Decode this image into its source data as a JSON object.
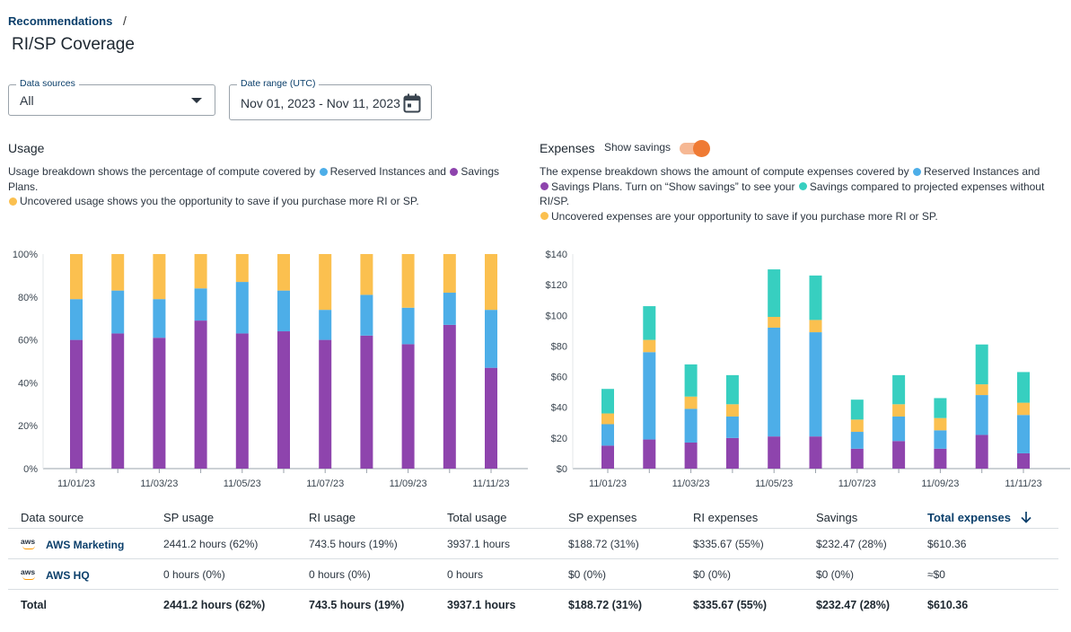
{
  "breadcrumb": {
    "parent": "Recommendations",
    "sep": "/"
  },
  "page_title": "RI/SP Coverage",
  "filters": {
    "data_sources": {
      "label": "Data sources",
      "value": "All"
    },
    "date_range": {
      "label": "Date range (UTC)",
      "value": "Nov 01, 2023 - Nov 11, 2023"
    }
  },
  "usage": {
    "title": "Usage",
    "desc_1": "Usage breakdown shows the percentage of compute covered by",
    "desc_ri": "Reserved Instances and",
    "desc_sp": "Savings Plans.",
    "desc_un": "Uncovered usage shows you the opportunity to save if you purchase more RI or SP."
  },
  "expenses": {
    "title": "Expenses",
    "toggle_label": "Show savings",
    "desc_1": "The expense breakdown shows the amount of compute expenses covered by",
    "desc_ri": "Reserved Instances and",
    "desc_sp": "Savings Plans. Turn on “Show savings” to see your",
    "desc_sv": "Savings compared to projected expenses without RI/SP.",
    "desc_un": "Uncovered expenses are your opportunity to save if you purchase more RI or SP."
  },
  "colors": {
    "sp": "#8e44ad",
    "ri": "#4daee8",
    "uncovered": "#fbc04f",
    "savings": "#37cfc0"
  },
  "chart_data": [
    {
      "type": "bar",
      "stacked": true,
      "title": "Usage",
      "xlabel": "",
      "ylabel": "",
      "ylim": [
        0,
        100
      ],
      "yticks": [
        0,
        20,
        40,
        60,
        80,
        100
      ],
      "ytick_labels": [
        "0%",
        "20%",
        "40%",
        "60%",
        "80%",
        "100%"
      ],
      "categories": [
        "11/01/23",
        "11/02/23",
        "11/03/23",
        "11/04/23",
        "11/05/23",
        "11/06/23",
        "11/07/23",
        "11/08/23",
        "11/09/23",
        "11/10/23",
        "11/11/23"
      ],
      "xtick_labels": [
        "11/01/23",
        "",
        "11/03/23",
        "",
        "11/05/23",
        "",
        "11/07/23",
        "",
        "11/09/23",
        "",
        "11/11/23"
      ],
      "series": [
        {
          "name": "Savings Plans",
          "values": [
            60,
            63,
            61,
            69,
            63,
            64,
            60,
            62,
            58,
            67,
            47
          ]
        },
        {
          "name": "Reserved Instances",
          "values": [
            19,
            20,
            18,
            15,
            24,
            19,
            14,
            19,
            17,
            15,
            27
          ]
        },
        {
          "name": "Uncovered",
          "values": [
            21,
            17,
            21,
            16,
            13,
            17,
            26,
            19,
            25,
            18,
            26
          ]
        }
      ]
    },
    {
      "type": "bar",
      "stacked": true,
      "title": "Expenses",
      "xlabel": "",
      "ylabel": "",
      "ylim": [
        0,
        140
      ],
      "yticks": [
        0,
        20,
        40,
        60,
        80,
        100,
        120,
        140
      ],
      "ytick_labels": [
        "$0",
        "$20",
        "$40",
        "$60",
        "$80",
        "$100",
        "$120",
        "$140"
      ],
      "categories": [
        "11/01/23",
        "11/02/23",
        "11/03/23",
        "11/04/23",
        "11/05/23",
        "11/06/23",
        "11/07/23",
        "11/08/23",
        "11/09/23",
        "11/10/23",
        "11/11/23"
      ],
      "xtick_labels": [
        "11/01/23",
        "",
        "11/03/23",
        "",
        "11/05/23",
        "",
        "11/07/23",
        "",
        "11/09/23",
        "",
        "11/11/23"
      ],
      "series": [
        {
          "name": "Savings Plans",
          "values": [
            15,
            19,
            17,
            20,
            21,
            21,
            13,
            18,
            13,
            22,
            10
          ]
        },
        {
          "name": "Reserved Instances",
          "values": [
            14,
            57,
            22,
            14,
            71,
            68,
            11,
            16,
            12,
            26,
            25
          ]
        },
        {
          "name": "Uncovered",
          "values": [
            7,
            8,
            8,
            8,
            7,
            8,
            8,
            8,
            8,
            7,
            8
          ]
        },
        {
          "name": "Savings",
          "values": [
            16,
            22,
            21,
            19,
            31,
            29,
            13,
            19,
            13,
            26,
            20
          ]
        }
      ]
    }
  ],
  "table": {
    "headers": [
      "Data source",
      "SP usage",
      "RI usage",
      "Total usage",
      "SP expenses",
      "RI expenses",
      "Savings",
      "Total expenses"
    ],
    "sort_icon": "arrow-down-icon",
    "rows": [
      {
        "name": "AWS Marketing",
        "logo": "aws",
        "cells": [
          "2441.2 hours  (62%)",
          "743.5 hours  (19%)",
          "3937.1 hours",
          "$188.72 (31%)",
          "$335.67  (55%)",
          "$232.47 (28%)",
          "$610.36"
        ]
      },
      {
        "name": "AWS HQ",
        "logo": "aws",
        "cells": [
          "0 hours  (0%)",
          "0 hours  (0%)",
          "0 hours",
          "$0 (0%)",
          "$0  (0%)",
          "$0 (0%)",
          "≈$0"
        ]
      }
    ],
    "total": {
      "label": "Total",
      "cells": [
        "2441.2 hours  (62%)",
        "743.5 hours  (19%)",
        "3937.1 hours",
        "$188.72 (31%)",
        "$335.67  (55%)",
        "$232.47 (28%)",
        "$610.36"
      ]
    }
  }
}
